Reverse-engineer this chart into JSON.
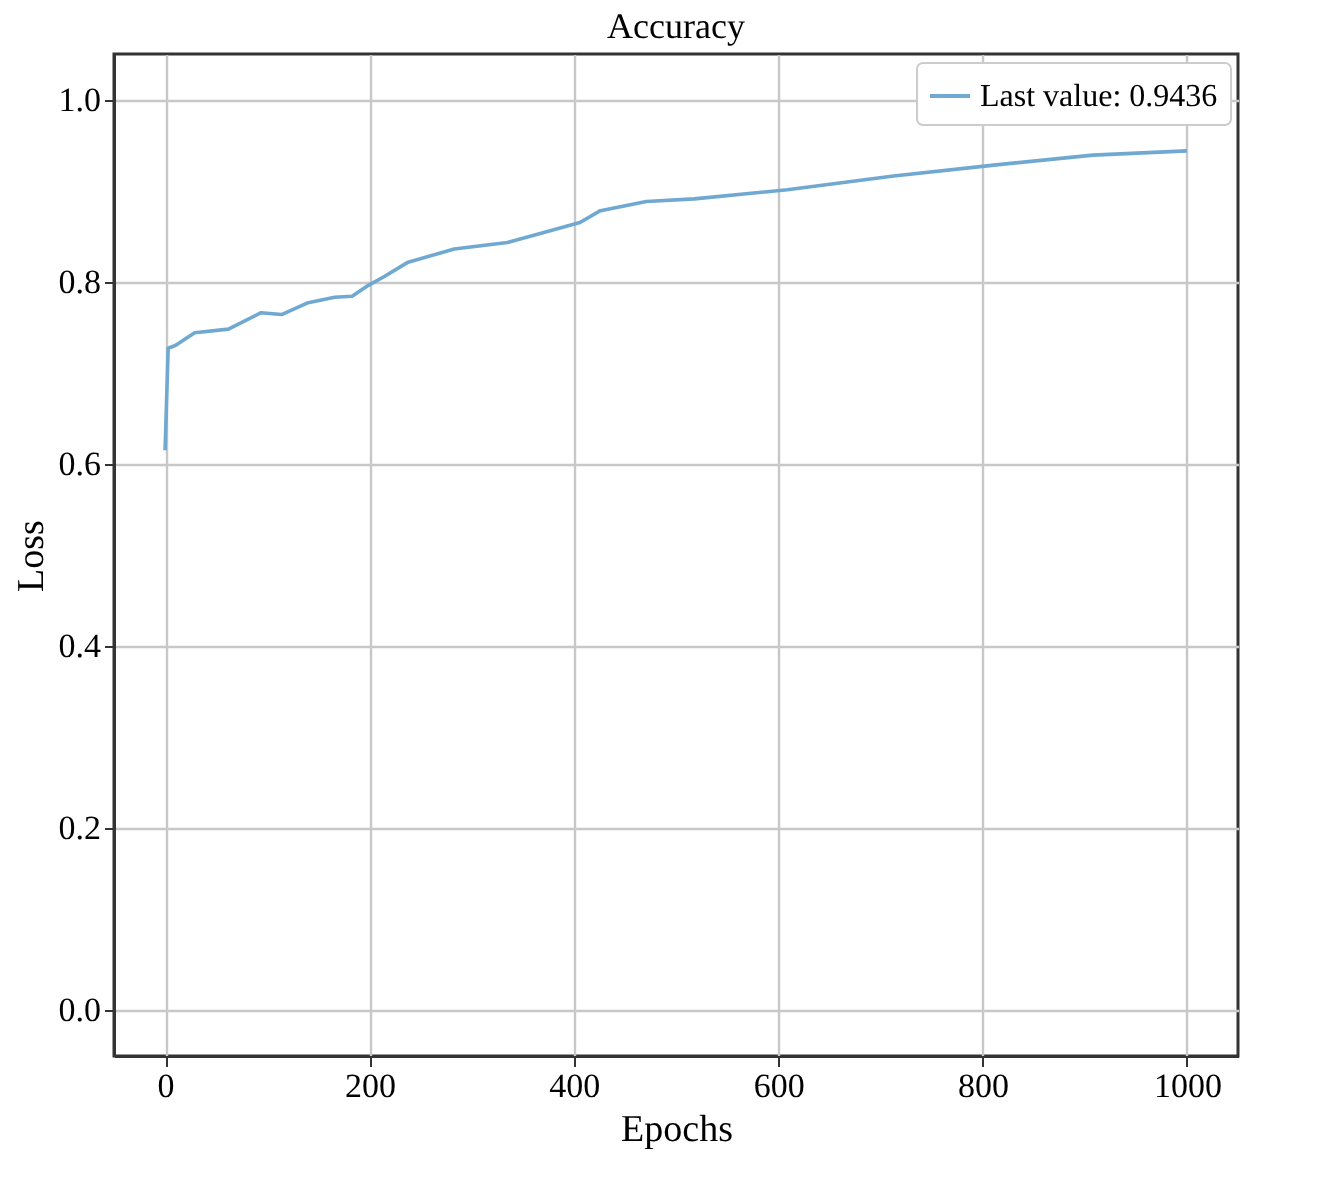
{
  "chart_data": {
    "type": "line",
    "title": "Accuracy",
    "xlabel": "Epochs",
    "ylabel": "Loss",
    "xlim": [
      -50,
      1050
    ],
    "xticks": [
      0,
      200,
      400,
      600,
      800,
      1000
    ],
    "ylim": [
      -0.05,
      1.05
    ],
    "yticks": [
      {
        "value": 0,
        "label": "0.0"
      },
      0.2,
      0.4,
      0.6,
      0.8,
      {
        "value": 1,
        "label": "1.0"
      }
    ],
    "grid": true,
    "legend": "top right",
    "line_style": "solid",
    "marker": "none",
    "x": [
      0,
      3,
      10,
      29,
      62,
      94,
      114,
      140,
      166,
      183,
      199,
      215,
      237,
      283,
      335,
      406,
      426,
      471,
      518,
      609,
      713,
      811,
      908,
      1000
    ],
    "series": [
      {
        "name": "Last value: 0.9436",
        "color": "#6fa8d0",
        "values": [
          0.615,
          0.727,
          0.73,
          0.744,
          0.748,
          0.766,
          0.764,
          0.777,
          0.783,
          0.784,
          0.796,
          0.806,
          0.821,
          0.836,
          0.843,
          0.865,
          0.878,
          0.888,
          0.891,
          0.901,
          0.916,
          0.928,
          0.939,
          0.9436
        ]
      }
    ]
  }
}
